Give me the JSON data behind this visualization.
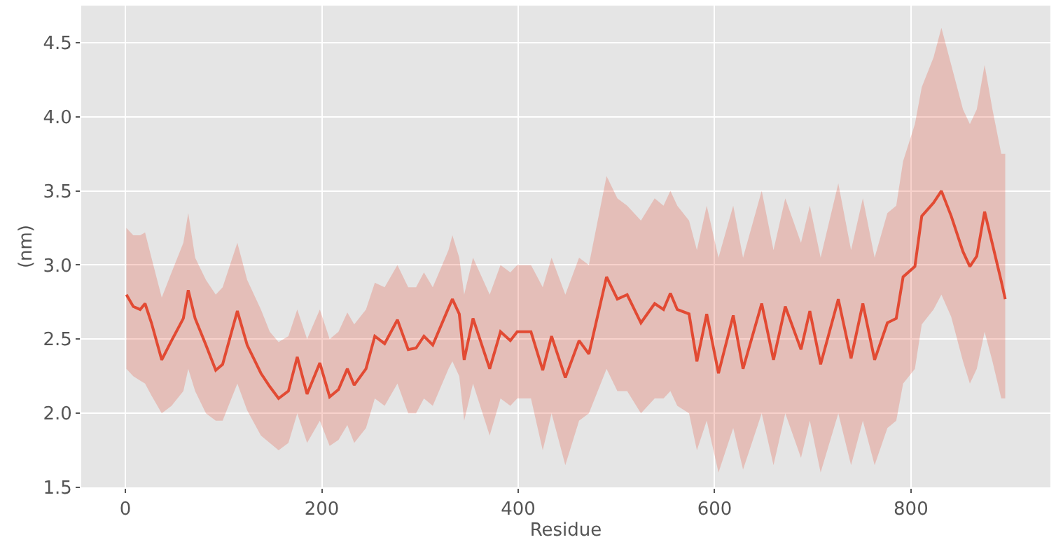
{
  "chart_data": {
    "type": "line",
    "xlabel": "Residue",
    "ylabel": "(nm)",
    "xlim": [
      -45,
      942
    ],
    "xticks": [
      0,
      200,
      400,
      600,
      800
    ],
    "ylim": [
      1.5,
      4.75
    ],
    "yticks": [
      1.5,
      {
        "value": 2,
        "label": "2.0"
      },
      2.5,
      {
        "value": 3,
        "label": "3.0"
      },
      3.5,
      {
        "value": 4,
        "label": "4.0"
      },
      4.5
    ],
    "grid": true,
    "marker": "none",
    "line_style": "solid",
    "x": [
      1,
      8,
      15,
      20,
      26.5,
      37,
      47,
      59,
      64,
      71,
      82,
      92,
      99,
      114,
      124,
      138,
      147,
      156,
      166,
      175,
      185,
      198,
      208,
      217,
      226,
      233,
      245,
      254,
      264,
      277,
      288,
      296,
      304,
      313,
      329,
      333,
      340,
      345,
      354,
      371,
      382,
      392,
      399,
      413,
      425,
      434,
      448,
      462,
      472,
      490,
      501,
      511,
      525,
      539,
      548,
      555,
      562,
      574,
      582,
      592,
      604,
      619,
      629,
      648,
      660,
      672,
      688,
      697,
      708,
      726,
      739,
      751,
      763,
      776,
      785,
      792,
      804,
      811,
      823,
      831,
      841,
      853,
      860,
      867,
      875,
      883,
      892,
      896
    ],
    "series": [
      {
        "color": "#e24a33",
        "values": [
          2.8,
          2.72,
          2.7,
          2.74,
          2.61,
          2.36,
          2.49,
          2.64,
          2.83,
          2.64,
          2.46,
          2.29,
          2.33,
          2.69,
          2.46,
          2.27,
          2.18,
          2.1,
          2.15,
          2.38,
          2.13,
          2.34,
          2.11,
          2.16,
          2.3,
          2.19,
          2.3,
          2.52,
          2.47,
          2.63,
          2.43,
          2.44,
          2.52,
          2.46,
          2.71,
          2.77,
          2.67,
          2.36,
          2.64,
          2.3,
          2.55,
          2.49,
          2.55,
          2.55,
          2.29,
          2.52,
          2.24,
          2.49,
          2.4,
          2.92,
          2.77,
          2.8,
          2.61,
          2.74,
          2.7,
          2.81,
          2.7,
          2.67,
          2.35,
          2.67,
          2.27,
          2.66,
          2.3,
          2.74,
          2.36,
          2.72,
          2.43,
          2.69,
          2.33,
          2.77,
          2.37,
          2.74,
          2.36,
          2.61,
          2.64,
          2.92,
          2.99,
          3.33,
          3.42,
          3.5,
          3.33,
          3.09,
          2.99,
          3.06,
          3.36,
          3.14,
          2.89,
          2.77
        ],
        "upper": [
          3.25,
          3.2,
          3.2,
          3.22,
          3.05,
          2.78,
          2.95,
          3.15,
          3.35,
          3.05,
          2.9,
          2.8,
          2.85,
          3.15,
          2.9,
          2.7,
          2.55,
          2.48,
          2.52,
          2.7,
          2.5,
          2.7,
          2.5,
          2.55,
          2.68,
          2.6,
          2.7,
          2.88,
          2.85,
          3.0,
          2.85,
          2.85,
          2.95,
          2.85,
          3.1,
          3.2,
          3.05,
          2.8,
          3.05,
          2.8,
          3.0,
          2.95,
          3.0,
          3.0,
          2.85,
          3.05,
          2.8,
          3.05,
          3.0,
          3.6,
          3.45,
          3.4,
          3.3,
          3.45,
          3.4,
          3.5,
          3.4,
          3.3,
          3.1,
          3.4,
          3.05,
          3.4,
          3.05,
          3.5,
          3.1,
          3.45,
          3.15,
          3.4,
          3.05,
          3.55,
          3.1,
          3.45,
          3.05,
          3.35,
          3.4,
          3.7,
          3.95,
          4.2,
          4.4,
          4.6,
          4.35,
          4.05,
          3.95,
          4.05,
          4.35,
          4.05,
          3.75,
          3.75
        ],
        "lower": [
          2.3,
          2.25,
          2.22,
          2.2,
          2.12,
          2.0,
          2.05,
          2.15,
          2.3,
          2.15,
          2.0,
          1.95,
          1.95,
          2.2,
          2.02,
          1.85,
          1.8,
          1.75,
          1.8,
          2.0,
          1.8,
          1.95,
          1.78,
          1.82,
          1.92,
          1.8,
          1.9,
          2.1,
          2.05,
          2.2,
          2.0,
          2.0,
          2.1,
          2.05,
          2.3,
          2.35,
          2.25,
          1.95,
          2.2,
          1.85,
          2.1,
          2.05,
          2.1,
          2.1,
          1.75,
          2.0,
          1.65,
          1.95,
          2.0,
          2.3,
          2.15,
          2.15,
          2.0,
          2.1,
          2.1,
          2.15,
          2.05,
          2.0,
          1.75,
          1.95,
          1.6,
          1.9,
          1.62,
          2.0,
          1.65,
          2.0,
          1.7,
          1.95,
          1.6,
          2.0,
          1.65,
          1.95,
          1.65,
          1.9,
          1.95,
          2.2,
          2.3,
          2.6,
          2.7,
          2.8,
          2.65,
          2.35,
          2.2,
          2.3,
          2.55,
          2.35,
          2.1,
          2.1
        ]
      }
    ]
  }
}
